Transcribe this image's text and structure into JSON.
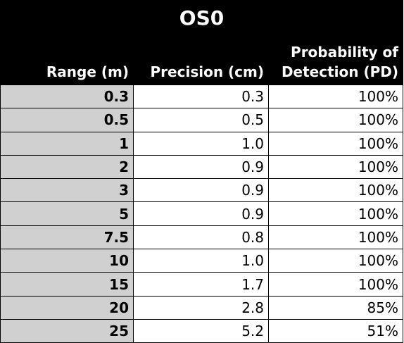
{
  "title": "OS0",
  "columns": [
    "Range (m)",
    "Precision (cm)",
    "Probability of Detection (PD)"
  ],
  "header_lines": {
    "range": "Range (m)",
    "precision": "Precision (cm)",
    "pd_line1": "Probability of",
    "pd_line2": "Detection (PD)"
  },
  "rows": [
    {
      "range": "0.3",
      "precision": "0.3",
      "pd": "100%"
    },
    {
      "range": "0.5",
      "precision": "0.5",
      "pd": "100%"
    },
    {
      "range": "1",
      "precision": "1.0",
      "pd": "100%"
    },
    {
      "range": "2",
      "precision": "0.9",
      "pd": "100%"
    },
    {
      "range": "3",
      "precision": "0.9",
      "pd": "100%"
    },
    {
      "range": "5",
      "precision": "0.9",
      "pd": "100%"
    },
    {
      "range": "7.5",
      "precision": "0.8",
      "pd": "100%"
    },
    {
      "range": "10",
      "precision": "1.0",
      "pd": "100%"
    },
    {
      "range": "15",
      "precision": "1.7",
      "pd": "100%"
    },
    {
      "range": "20",
      "precision": "2.8",
      "pd": "85%"
    },
    {
      "range": "25",
      "precision": "5.2",
      "pd": "51%"
    }
  ],
  "colors": {
    "header_bg": "#000000",
    "header_text": "#ffffff",
    "range_cell_bg": "#d0d0d0",
    "value_cell_bg": "#ffffff",
    "border": "#000000"
  }
}
